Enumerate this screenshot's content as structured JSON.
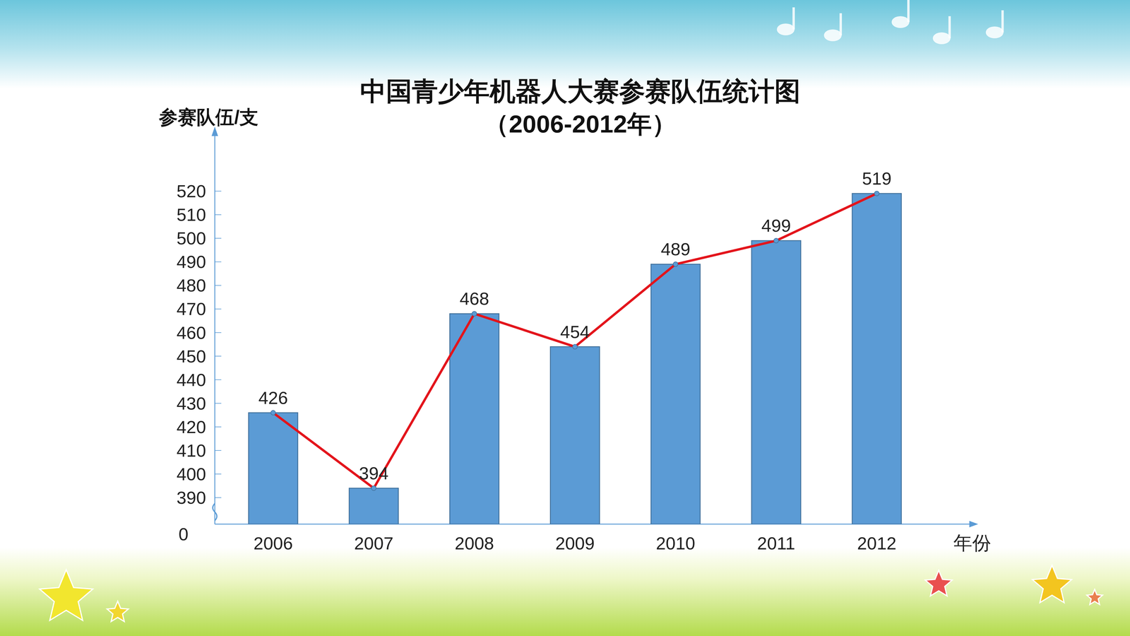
{
  "chart_data": {
    "type": "bar",
    "title": "中国青少年机器人大赛参赛队伍统计图",
    "subtitle": "（2006-2012年）",
    "ylabel": "参赛队伍/支",
    "xlabel": "年份",
    "categories": [
      "2006",
      "2007",
      "2008",
      "2009",
      "2010",
      "2011",
      "2012"
    ],
    "series": [
      {
        "type": "bar",
        "color": "#5b9bd5",
        "values": [
          426,
          394,
          468,
          454,
          489,
          499,
          519
        ]
      },
      {
        "type": "line",
        "color": "#e3141b",
        "marker": "circle",
        "values": [
          426,
          394,
          468,
          454,
          489,
          499,
          519
        ]
      }
    ],
    "ylim": [
      0,
      540
    ],
    "yticks": [
      0,
      390,
      400,
      410,
      420,
      430,
      440,
      450,
      460,
      470,
      480,
      490,
      500,
      510,
      520
    ],
    "y_break": [
      0,
      390
    ],
    "data_labels": true,
    "grid": false
  }
}
